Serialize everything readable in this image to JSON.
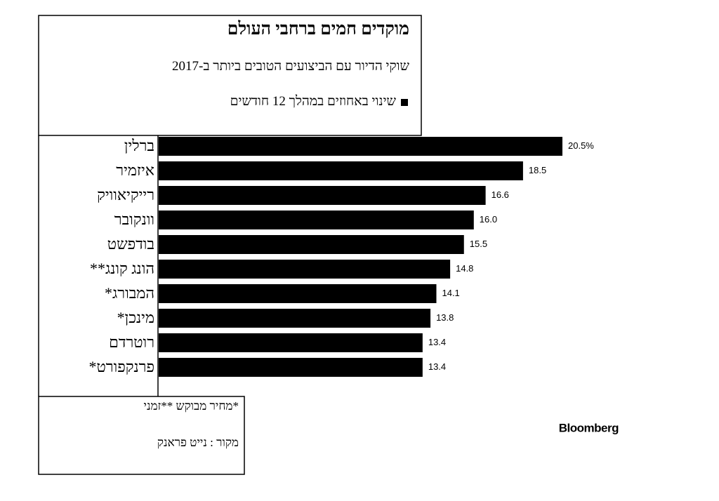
{
  "chart_data": {
    "type": "bar",
    "orientation": "horizontal",
    "title": "מוקדים חמים ברחבי העולם",
    "subtitle": "שוקי הדיור עם הביצועים הטובים ביותר ב-2017",
    "categories": [
      "ברלין",
      "איזמיר",
      "רייקיאוויק",
      "וונקובר",
      "בודפשט",
      "הונג קונג**",
      "המבורג*",
      "מינכן*",
      "רוטרדם",
      "פרנקפורט*"
    ],
    "series": [
      {
        "name": "שינוי באחוזים במהלך 12 חודשים",
        "color": "#000000",
        "values": [
          20.5,
          18.5,
          16.6,
          16.0,
          15.5,
          14.8,
          14.1,
          13.8,
          13.4,
          13.4
        ],
        "value_labels": [
          "20.5%",
          "18.5",
          "16.6",
          "16.0",
          "15.5",
          "14.8",
          "14.1",
          "13.8",
          "13.4",
          "13.4"
        ]
      }
    ],
    "footnote": "*מחיר מבוקש **זמני",
    "source": "מקור : נייט פראנק",
    "brand": "Bloomberg"
  }
}
